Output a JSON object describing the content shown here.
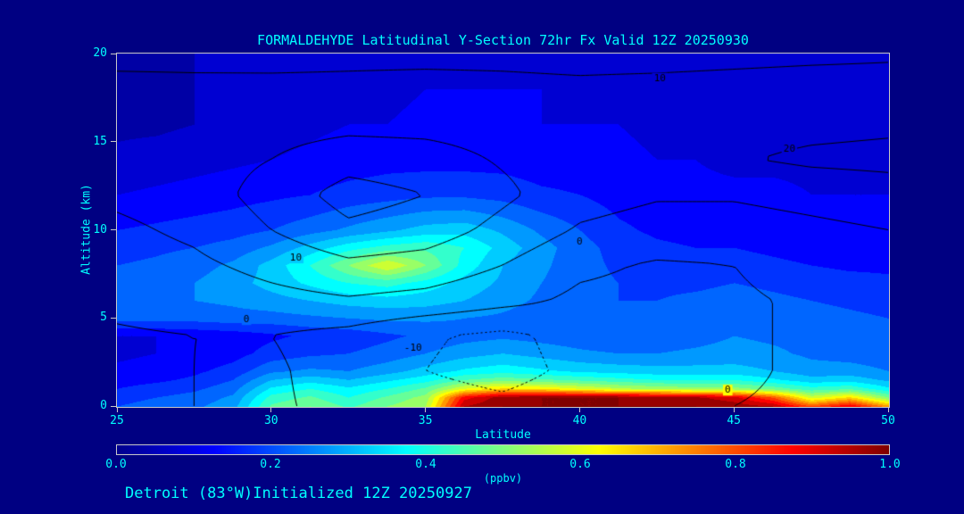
{
  "title": "FORMALDEHYDE Latitudinal Y-Section 72hr  Fx Valid 12Z 20250930",
  "footer": "Detroit (83°W)Initialized 12Z 20250927",
  "colors": {
    "background": "#000082",
    "text": "#00FFFF",
    "contour_line": "#000000",
    "frame": "#C8C8C8"
  },
  "chart_data": {
    "type": "heatmap",
    "title": "FORMALDEHYDE Latitudinal Y-Section 72hr  Fx Valid 12Z 20250930",
    "xlabel": "Latitude",
    "ylabel": "Altitude (km)",
    "xlim": [
      25,
      50
    ],
    "ylim": [
      0,
      20
    ],
    "x_ticks": [
      25,
      30,
      35,
      40,
      45,
      50
    ],
    "y_ticks": [
      0,
      5,
      10,
      15,
      20
    ],
    "grid": false,
    "colormap": {
      "stops": [
        {
          "pos": 0.0,
          "color": "#00008F"
        },
        {
          "pos": 0.125,
          "color": "#0000FF"
        },
        {
          "pos": 0.375,
          "color": "#00FFFF"
        },
        {
          "pos": 0.625,
          "color": "#FFFF00"
        },
        {
          "pos": 0.875,
          "color": "#FF0000"
        },
        {
          "pos": 1.0,
          "color": "#7F0000"
        }
      ]
    },
    "colorbar": {
      "ticks": [
        "0.0",
        "0.2",
        "0.4",
        "0.6",
        "0.8",
        "1.0"
      ],
      "label": "(ppbv)"
    },
    "fill": {
      "units": "ppbv",
      "quantize_step": 0.05,
      "lat_values": [
        25,
        26.25,
        27.5,
        28.75,
        30,
        31.25,
        32.5,
        33.75,
        35,
        36.25,
        37.5,
        38.75,
        40,
        41.25,
        42.5,
        43.75,
        45,
        46.25,
        47.5,
        48.75,
        50
      ],
      "alt_values": [
        0,
        0.5,
        1,
        1.5,
        2,
        3,
        4,
        5,
        6,
        7,
        8,
        9,
        10,
        12,
        14,
        16,
        18,
        20
      ],
      "values_by_alt": [
        [
          0.2,
          0.22,
          0.24,
          0.28,
          0.46,
          0.5,
          0.44,
          0.5,
          0.55,
          0.95,
          1.0,
          1.0,
          1.0,
          1.0,
          1.0,
          1.0,
          0.98,
          0.95,
          0.8,
          0.9,
          0.72
        ],
        [
          0.18,
          0.2,
          0.22,
          0.26,
          0.42,
          0.46,
          0.4,
          0.46,
          0.52,
          0.88,
          0.98,
          1.0,
          1.0,
          1.0,
          0.98,
          0.96,
          0.92,
          0.8,
          0.58,
          0.66,
          0.5
        ],
        [
          0.15,
          0.17,
          0.19,
          0.23,
          0.36,
          0.4,
          0.36,
          0.4,
          0.46,
          0.6,
          0.66,
          0.64,
          0.6,
          0.56,
          0.54,
          0.52,
          0.52,
          0.48,
          0.42,
          0.44,
          0.36
        ],
        [
          0.13,
          0.14,
          0.16,
          0.2,
          0.3,
          0.33,
          0.3,
          0.34,
          0.38,
          0.45,
          0.48,
          0.46,
          0.44,
          0.42,
          0.4,
          0.4,
          0.4,
          0.36,
          0.32,
          0.33,
          0.29
        ],
        [
          0.11,
          0.12,
          0.14,
          0.17,
          0.24,
          0.26,
          0.25,
          0.28,
          0.32,
          0.36,
          0.38,
          0.36,
          0.34,
          0.33,
          0.32,
          0.32,
          0.32,
          0.3,
          0.27,
          0.27,
          0.25
        ],
        [
          0.09,
          0.1,
          0.11,
          0.13,
          0.17,
          0.19,
          0.2,
          0.22,
          0.25,
          0.28,
          0.3,
          0.28,
          0.26,
          0.25,
          0.25,
          0.26,
          0.27,
          0.26,
          0.24,
          0.23,
          0.22
        ],
        [
          0.1,
          0.1,
          0.11,
          0.12,
          0.14,
          0.16,
          0.17,
          0.19,
          0.21,
          0.23,
          0.24,
          0.23,
          0.22,
          0.21,
          0.22,
          0.23,
          0.25,
          0.24,
          0.23,
          0.22,
          0.21
        ],
        [
          0.22,
          0.22,
          0.22,
          0.23,
          0.23,
          0.24,
          0.25,
          0.26,
          0.26,
          0.25,
          0.24,
          0.22,
          0.21,
          0.2,
          0.21,
          0.22,
          0.24,
          0.23,
          0.22,
          0.21,
          0.2
        ],
        [
          0.24,
          0.24,
          0.25,
          0.26,
          0.28,
          0.3,
          0.32,
          0.33,
          0.32,
          0.3,
          0.27,
          0.24,
          0.22,
          0.2,
          0.2,
          0.21,
          0.22,
          0.21,
          0.2,
          0.19,
          0.18
        ],
        [
          0.22,
          0.23,
          0.25,
          0.28,
          0.32,
          0.36,
          0.4,
          0.42,
          0.38,
          0.33,
          0.29,
          0.25,
          0.22,
          0.2,
          0.19,
          0.19,
          0.2,
          0.19,
          0.18,
          0.17,
          0.16
        ],
        [
          0.2,
          0.21,
          0.23,
          0.26,
          0.32,
          0.4,
          0.5,
          0.6,
          0.5,
          0.38,
          0.3,
          0.26,
          0.22,
          0.19,
          0.18,
          0.17,
          0.17,
          0.16,
          0.15,
          0.14,
          0.14
        ],
        [
          0.18,
          0.19,
          0.2,
          0.22,
          0.26,
          0.32,
          0.38,
          0.42,
          0.44,
          0.4,
          0.33,
          0.27,
          0.22,
          0.18,
          0.16,
          0.15,
          0.15,
          0.14,
          0.13,
          0.13,
          0.12
        ],
        [
          0.15,
          0.16,
          0.17,
          0.18,
          0.2,
          0.23,
          0.26,
          0.29,
          0.32,
          0.33,
          0.29,
          0.24,
          0.2,
          0.16,
          0.14,
          0.13,
          0.13,
          0.12,
          0.12,
          0.11,
          0.11
        ],
        [
          0.1,
          0.11,
          0.12,
          0.13,
          0.14,
          0.15,
          0.17,
          0.18,
          0.19,
          0.19,
          0.18,
          0.16,
          0.15,
          0.13,
          0.12,
          0.11,
          0.11,
          0.11,
          0.1,
          0.1,
          0.1
        ],
        [
          0.06,
          0.07,
          0.08,
          0.09,
          0.1,
          0.11,
          0.12,
          0.13,
          0.13,
          0.13,
          0.13,
          0.12,
          0.12,
          0.11,
          0.1,
          0.1,
          0.09,
          0.09,
          0.09,
          0.08,
          0.08
        ],
        [
          0.04,
          0.04,
          0.05,
          0.06,
          0.08,
          0.09,
          0.1,
          0.1,
          0.11,
          0.11,
          0.11,
          0.1,
          0.1,
          0.1,
          0.09,
          0.09,
          0.08,
          0.08,
          0.08,
          0.08,
          0.07
        ],
        [
          0.04,
          0.04,
          0.05,
          0.06,
          0.07,
          0.08,
          0.09,
          0.09,
          0.1,
          0.1,
          0.1,
          0.1,
          0.09,
          0.09,
          0.09,
          0.08,
          0.08,
          0.08,
          0.07,
          0.07,
          0.07
        ],
        [
          0.04,
          0.04,
          0.05,
          0.06,
          0.07,
          0.07,
          0.08,
          0.08,
          0.09,
          0.09,
          0.09,
          0.09,
          0.09,
          0.08,
          0.08,
          0.08,
          0.07,
          0.07,
          0.07,
          0.06,
          0.06
        ]
      ]
    },
    "overlay_contours": {
      "levels": [
        -10,
        0,
        10,
        20,
        30
      ],
      "negative_style": "dotted",
      "lat_values": [
        25,
        27.5,
        30,
        32.5,
        35,
        37.5,
        40,
        42.5,
        45,
        47.5,
        50
      ],
      "alt_values": [
        0,
        2,
        4,
        6,
        8,
        10,
        12,
        14,
        16,
        18,
        20
      ],
      "values_by_alt": [
        [
          -1,
          0,
          1,
          -2,
          -6,
          -8,
          -5,
          -2,
          0,
          1,
          2
        ],
        [
          -1,
          0,
          1,
          -3,
          -10,
          -13,
          -8,
          -4,
          -1,
          1,
          2
        ],
        [
          -1,
          0,
          0,
          -3,
          -9,
          -12,
          -7,
          -3,
          -1,
          1,
          3
        ],
        [
          2,
          4,
          7,
          9,
          7,
          3,
          -2,
          -3,
          -1,
          1,
          3
        ],
        [
          5,
          8,
          13,
          18,
          16,
          10,
          2,
          -1,
          0,
          3,
          5
        ],
        [
          8,
          12,
          20,
          28,
          25,
          17,
          9,
          6,
          6,
          8,
          10
        ],
        [
          12,
          15,
          24,
          34,
          30,
          22,
          14,
          11,
          11,
          13,
          15
        ],
        [
          14,
          16,
          20,
          26,
          24,
          19,
          15,
          16,
          19,
          22,
          23
        ],
        [
          15,
          15,
          16,
          17,
          17,
          16,
          15,
          15,
          16,
          17,
          18
        ],
        [
          13,
          12.5,
          12,
          12,
          12.5,
          12,
          11.5,
          12,
          12.5,
          13,
          13
        ],
        [
          7,
          7,
          7.5,
          8,
          8,
          8,
          7.5,
          7.5,
          8,
          8.5,
          9
        ]
      ],
      "labels": [
        {
          "text": "10",
          "lat": 42.6,
          "alt": 18.6
        },
        {
          "text": "20",
          "lat": 46.8,
          "alt": 14.6
        },
        {
          "text": "10",
          "lat": 30.8,
          "alt": 8.4
        },
        {
          "text": "0",
          "lat": 40.0,
          "alt": 9.3
        },
        {
          "text": "0",
          "lat": 29.2,
          "alt": 4.9
        },
        {
          "text": "-10",
          "lat": 34.6,
          "alt": 3.3
        },
        {
          "text": "0",
          "lat": 44.8,
          "alt": 0.9
        }
      ]
    }
  }
}
